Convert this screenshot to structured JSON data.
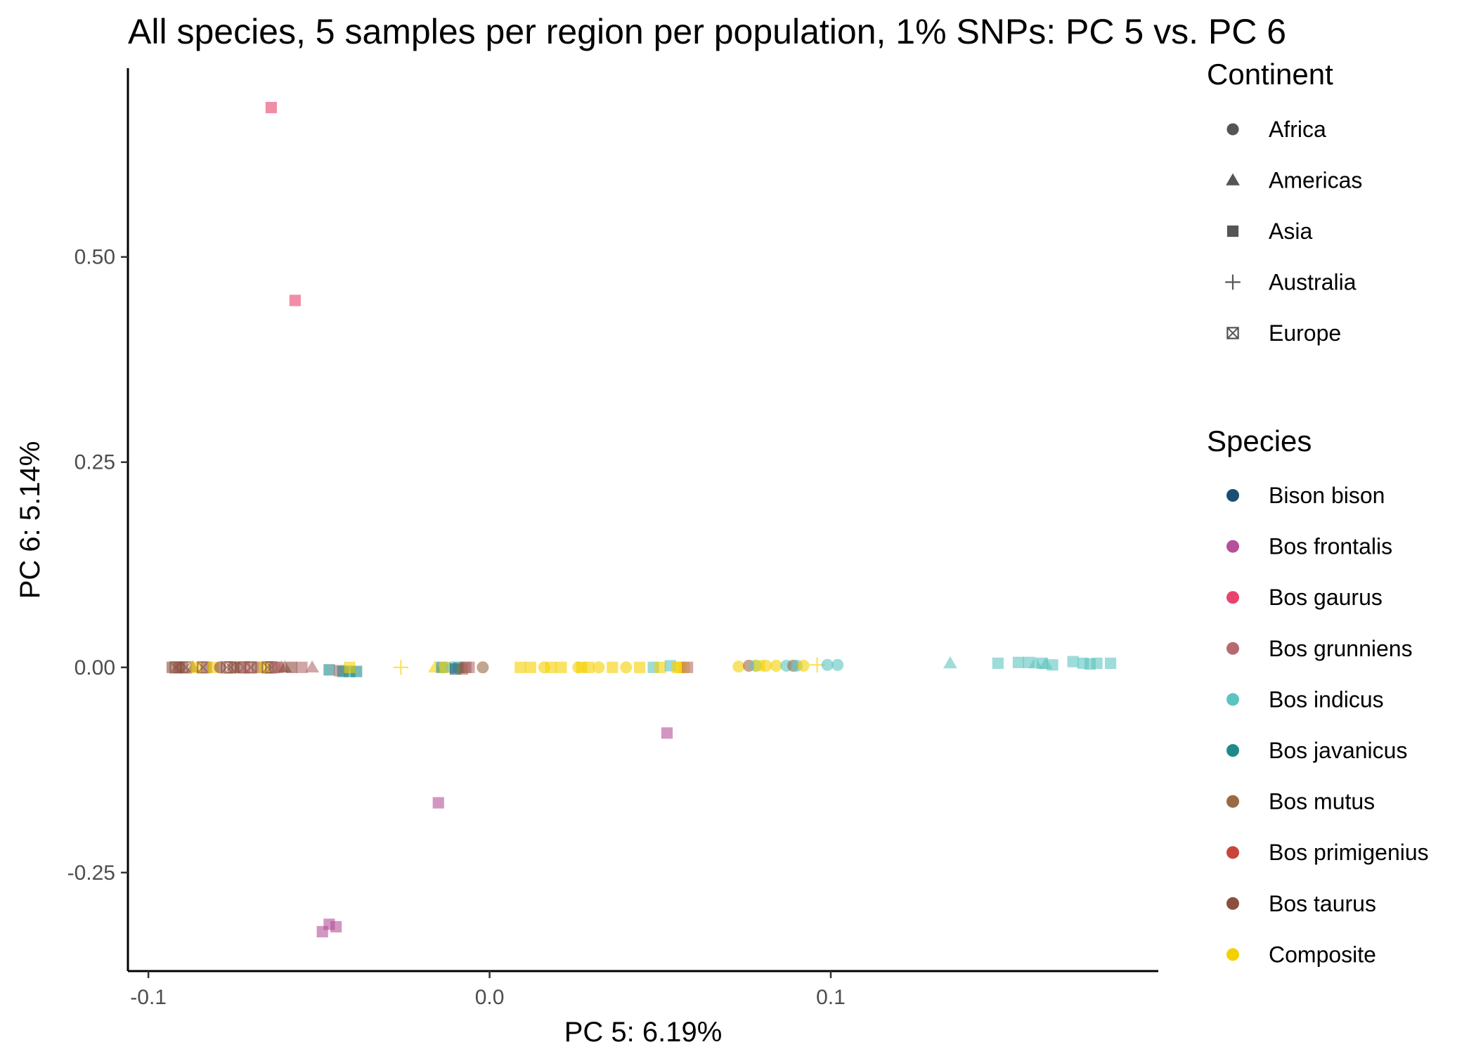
{
  "chart_data": {
    "type": "scatter",
    "title": "All species, 5 samples per region per population, 1% SNPs: PC 5 vs. PC 6",
    "xlabel": "PC 5: 6.19%",
    "ylabel": "PC 6: 5.14%",
    "xlim": [
      -0.106,
      0.196
    ],
    "ylim": [
      -0.37,
      0.73
    ],
    "x_ticks": [
      {
        "value": -0.1,
        "label": "-0.1"
      },
      {
        "value": 0.0,
        "label": "0.0"
      },
      {
        "value": 0.1,
        "label": "0.1"
      }
    ],
    "y_ticks": [
      {
        "value": 0.5,
        "label": "0.50"
      },
      {
        "value": 0.25,
        "label": "0.25"
      },
      {
        "value": 0.0,
        "label": "0.00"
      },
      {
        "value": -0.25,
        "label": "-0.25"
      }
    ],
    "grid": false,
    "legend_position": "right",
    "legends": {
      "continent": {
        "title": "Continent",
        "items": [
          {
            "label": "Africa",
            "shape": "circle"
          },
          {
            "label": "Americas",
            "shape": "triangle"
          },
          {
            "label": "Asia",
            "shape": "square"
          },
          {
            "label": "Australia",
            "shape": "plus"
          },
          {
            "label": "Europe",
            "shape": "boxx"
          }
        ]
      },
      "species": {
        "title": "Species",
        "items": [
          {
            "label": "Bison bison",
            "color": "#1b4f72"
          },
          {
            "label": "Bos frontalis",
            "color": "#b5509a"
          },
          {
            "label": "Bos gaurus",
            "color": "#e8436d"
          },
          {
            "label": "Bos grunniens",
            "color": "#b46a6e"
          },
          {
            "label": "Bos indicus",
            "color": "#5cc4c0"
          },
          {
            "label": "Bos javanicus",
            "color": "#1f8a8a"
          },
          {
            "label": "Bos mutus",
            "color": "#9a6a45"
          },
          {
            "label": "Bos primigenius",
            "color": "#c8463b"
          },
          {
            "label": "Bos taurus",
            "color": "#8b4f3e"
          },
          {
            "label": "Composite",
            "color": "#f5d000"
          }
        ]
      }
    },
    "points": [
      {
        "x": -0.064,
        "y": 0.682,
        "species": "Bos gaurus",
        "shape": "square"
      },
      {
        "x": -0.057,
        "y": 0.447,
        "species": "Bos gaurus",
        "shape": "square"
      },
      {
        "x": 0.052,
        "y": -0.08,
        "species": "Bos frontalis",
        "shape": "square"
      },
      {
        "x": -0.015,
        "y": -0.165,
        "species": "Bos frontalis",
        "shape": "square"
      },
      {
        "x": -0.047,
        "y": -0.313,
        "species": "Bos frontalis",
        "shape": "square"
      },
      {
        "x": -0.045,
        "y": -0.316,
        "species": "Bos frontalis",
        "shape": "square"
      },
      {
        "x": -0.049,
        "y": -0.322,
        "species": "Bos frontalis",
        "shape": "square"
      },
      {
        "x": -0.093,
        "y": 0.0,
        "species": "Bos taurus",
        "shape": "square"
      },
      {
        "x": -0.092,
        "y": 0.0,
        "species": "Bos taurus",
        "shape": "boxx"
      },
      {
        "x": -0.091,
        "y": 0.0,
        "species": "Bos taurus",
        "shape": "square"
      },
      {
        "x": -0.09,
        "y": 0.0,
        "species": "Bos taurus",
        "shape": "square"
      },
      {
        "x": -0.089,
        "y": 0.0,
        "species": "Bos taurus",
        "shape": "boxx"
      },
      {
        "x": -0.087,
        "y": 0.0,
        "species": "Bos taurus",
        "shape": "triangle"
      },
      {
        "x": -0.086,
        "y": 0.0,
        "species": "Composite",
        "shape": "square"
      },
      {
        "x": -0.084,
        "y": 0.0,
        "species": "Bos taurus",
        "shape": "boxx"
      },
      {
        "x": -0.083,
        "y": 0.0,
        "species": "Bos taurus",
        "shape": "square"
      },
      {
        "x": -0.081,
        "y": 0.0,
        "species": "Composite",
        "shape": "square"
      },
      {
        "x": -0.079,
        "y": 0.0,
        "species": "Bos taurus",
        "shape": "circle"
      },
      {
        "x": -0.077,
        "y": 0.0,
        "species": "Bos taurus",
        "shape": "boxx"
      },
      {
        "x": -0.076,
        "y": 0.0,
        "species": "Bos taurus",
        "shape": "boxx"
      },
      {
        "x": -0.075,
        "y": 0.0,
        "species": "Bos taurus",
        "shape": "square"
      },
      {
        "x": -0.073,
        "y": 0.0,
        "species": "Bos taurus",
        "shape": "square"
      },
      {
        "x": -0.072,
        "y": 0.0,
        "species": "Bos taurus",
        "shape": "boxx"
      },
      {
        "x": -0.071,
        "y": 0.0,
        "species": "Bos grunniens",
        "shape": "square"
      },
      {
        "x": -0.07,
        "y": 0.0,
        "species": "Bos taurus",
        "shape": "boxx"
      },
      {
        "x": -0.068,
        "y": 0.0,
        "species": "Bos taurus",
        "shape": "square"
      },
      {
        "x": -0.066,
        "y": 0.0,
        "species": "Composite",
        "shape": "square"
      },
      {
        "x": -0.065,
        "y": 0.0,
        "species": "Bos taurus",
        "shape": "boxx"
      },
      {
        "x": -0.064,
        "y": 0.0,
        "species": "Bos taurus",
        "shape": "boxx"
      },
      {
        "x": -0.063,
        "y": 0.0,
        "species": "Bos taurus",
        "shape": "square"
      },
      {
        "x": -0.062,
        "y": 0.0,
        "species": "Bos grunniens",
        "shape": "square"
      },
      {
        "x": -0.061,
        "y": 0.0,
        "species": "Bos grunniens",
        "shape": "triangle"
      },
      {
        "x": -0.06,
        "y": 0.0,
        "species": "Bos taurus",
        "shape": "triangle"
      },
      {
        "x": -0.058,
        "y": 0.0,
        "species": "Bos taurus",
        "shape": "square"
      },
      {
        "x": -0.055,
        "y": 0.0,
        "species": "Bos grunniens",
        "shape": "square"
      },
      {
        "x": -0.052,
        "y": 0.0,
        "species": "Bos grunniens",
        "shape": "triangle"
      },
      {
        "x": -0.047,
        "y": -0.003,
        "species": "Bos javanicus",
        "shape": "square"
      },
      {
        "x": -0.044,
        "y": -0.004,
        "species": "Bos grunniens",
        "shape": "square"
      },
      {
        "x": -0.043,
        "y": -0.005,
        "species": "Bos javanicus",
        "shape": "square"
      },
      {
        "x": -0.041,
        "y": -0.005,
        "species": "Bos javanicus",
        "shape": "square"
      },
      {
        "x": -0.039,
        "y": -0.005,
        "species": "Bos javanicus",
        "shape": "square"
      },
      {
        "x": -0.041,
        "y": 0.0,
        "species": "Composite",
        "shape": "square"
      },
      {
        "x": -0.026,
        "y": 0.0,
        "species": "Composite",
        "shape": "plus"
      },
      {
        "x": -0.016,
        "y": 0.0,
        "species": "Composite",
        "shape": "triangle"
      },
      {
        "x": -0.014,
        "y": 0.0,
        "species": "Bos javanicus",
        "shape": "square"
      },
      {
        "x": -0.013,
        "y": 0.0,
        "species": "Composite",
        "shape": "square"
      },
      {
        "x": -0.011,
        "y": 0.0,
        "species": "Bos indicus",
        "shape": "circle"
      },
      {
        "x": -0.01,
        "y": -0.002,
        "species": "Bison bison",
        "shape": "square"
      },
      {
        "x": -0.009,
        "y": 0.0,
        "species": "Bos javanicus",
        "shape": "square"
      },
      {
        "x": -0.008,
        "y": -0.002,
        "species": "Bos mutus",
        "shape": "square"
      },
      {
        "x": -0.007,
        "y": 0.0,
        "species": "Bos taurus",
        "shape": "square"
      },
      {
        "x": -0.006,
        "y": 0.0,
        "species": "Bos grunniens",
        "shape": "square"
      },
      {
        "x": -0.002,
        "y": 0.0,
        "species": "Bos mutus",
        "shape": "circle"
      },
      {
        "x": 0.009,
        "y": 0.0,
        "species": "Composite",
        "shape": "square"
      },
      {
        "x": 0.012,
        "y": 0.0,
        "species": "Composite",
        "shape": "square"
      },
      {
        "x": 0.016,
        "y": 0.0,
        "species": "Composite",
        "shape": "circle"
      },
      {
        "x": 0.018,
        "y": 0.0,
        "species": "Composite",
        "shape": "square"
      },
      {
        "x": 0.021,
        "y": 0.0,
        "species": "Composite",
        "shape": "square"
      },
      {
        "x": 0.026,
        "y": 0.0,
        "species": "Composite",
        "shape": "circle"
      },
      {
        "x": 0.027,
        "y": 0.0,
        "species": "Composite",
        "shape": "square"
      },
      {
        "x": 0.029,
        "y": 0.0,
        "species": "Composite",
        "shape": "square"
      },
      {
        "x": 0.032,
        "y": 0.0,
        "species": "Composite",
        "shape": "circle"
      },
      {
        "x": 0.036,
        "y": 0.0,
        "species": "Composite",
        "shape": "square"
      },
      {
        "x": 0.04,
        "y": 0.0,
        "species": "Composite",
        "shape": "circle"
      },
      {
        "x": 0.044,
        "y": 0.0,
        "species": "Composite",
        "shape": "square"
      },
      {
        "x": 0.048,
        "y": 0.0,
        "species": "Bos indicus",
        "shape": "square"
      },
      {
        "x": 0.05,
        "y": 0.0,
        "species": "Composite",
        "shape": "square"
      },
      {
        "x": 0.053,
        "y": 0.002,
        "species": "Bos indicus",
        "shape": "square"
      },
      {
        "x": 0.055,
        "y": 0.0,
        "species": "Composite",
        "shape": "square"
      },
      {
        "x": 0.056,
        "y": 0.0,
        "species": "Composite",
        "shape": "square"
      },
      {
        "x": 0.057,
        "y": 0.0,
        "species": "Composite",
        "shape": "square"
      },
      {
        "x": 0.058,
        "y": 0.0,
        "species": "Bos grunniens",
        "shape": "square"
      },
      {
        "x": 0.073,
        "y": 0.001,
        "species": "Composite",
        "shape": "circle"
      },
      {
        "x": 0.076,
        "y": 0.002,
        "species": "Bos mutus",
        "shape": "circle"
      },
      {
        "x": 0.078,
        "y": 0.002,
        "species": "Bos indicus",
        "shape": "circle"
      },
      {
        "x": 0.079,
        "y": 0.002,
        "species": "Composite",
        "shape": "square"
      },
      {
        "x": 0.081,
        "y": 0.002,
        "species": "Composite",
        "shape": "circle"
      },
      {
        "x": 0.084,
        "y": 0.002,
        "species": "Composite",
        "shape": "circle"
      },
      {
        "x": 0.087,
        "y": 0.002,
        "species": "Bos indicus",
        "shape": "circle"
      },
      {
        "x": 0.089,
        "y": 0.002,
        "species": "Bos mutus",
        "shape": "circle"
      },
      {
        "x": 0.09,
        "y": 0.002,
        "species": "Bos indicus",
        "shape": "circle"
      },
      {
        "x": 0.092,
        "y": 0.002,
        "species": "Composite",
        "shape": "circle"
      },
      {
        "x": 0.096,
        "y": 0.003,
        "species": "Composite",
        "shape": "plus"
      },
      {
        "x": 0.099,
        "y": 0.003,
        "species": "Bos indicus",
        "shape": "circle"
      },
      {
        "x": 0.102,
        "y": 0.003,
        "species": "Bos indicus",
        "shape": "circle"
      },
      {
        "x": 0.135,
        "y": 0.005,
        "species": "Bos indicus",
        "shape": "triangle"
      },
      {
        "x": 0.149,
        "y": 0.005,
        "species": "Bos indicus",
        "shape": "square"
      },
      {
        "x": 0.155,
        "y": 0.006,
        "species": "Bos indicus",
        "shape": "square"
      },
      {
        "x": 0.158,
        "y": 0.006,
        "species": "Bos indicus",
        "shape": "square"
      },
      {
        "x": 0.16,
        "y": 0.005,
        "species": "Bos indicus",
        "shape": "triangle"
      },
      {
        "x": 0.162,
        "y": 0.005,
        "species": "Bos indicus",
        "shape": "square"
      },
      {
        "x": 0.163,
        "y": 0.004,
        "species": "Bos indicus",
        "shape": "triangle"
      },
      {
        "x": 0.165,
        "y": 0.003,
        "species": "Bos indicus",
        "shape": "square"
      },
      {
        "x": 0.171,
        "y": 0.007,
        "species": "Bos indicus",
        "shape": "square"
      },
      {
        "x": 0.174,
        "y": 0.005,
        "species": "Bos indicus",
        "shape": "square"
      },
      {
        "x": 0.176,
        "y": 0.004,
        "species": "Bos indicus",
        "shape": "square"
      },
      {
        "x": 0.178,
        "y": 0.005,
        "species": "Bos indicus",
        "shape": "square"
      },
      {
        "x": 0.182,
        "y": 0.005,
        "species": "Bos indicus",
        "shape": "square"
      }
    ]
  }
}
